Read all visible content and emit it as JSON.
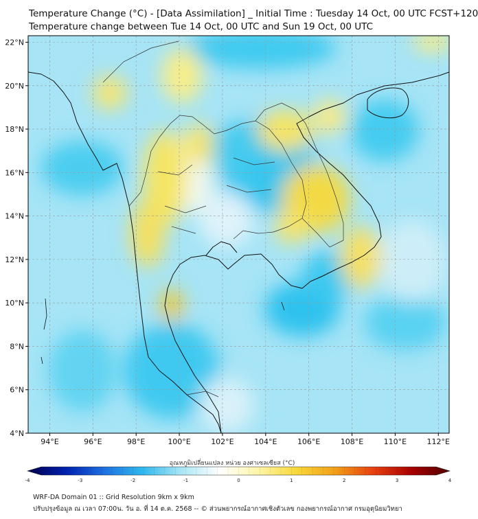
{
  "header": {
    "title_line1": "Temperature Change (°C) - [Data Assimilation] _ Initial Time : Tuesday 14 Oct, 00 UTC FCST+120",
    "title_line2": "Temperature change between Tue 14 Oct, 00 UTC and Sun 19 Oct, 00 UTC"
  },
  "map": {
    "lon_range": [
      93,
      112.5
    ],
    "lat_range": [
      4,
      22.3
    ],
    "lon_ticks": [
      {
        "value": 94,
        "label": "94°E"
      },
      {
        "value": 96,
        "label": "96°E"
      },
      {
        "value": 98,
        "label": "98°E"
      },
      {
        "value": 100,
        "label": "100°E"
      },
      {
        "value": 102,
        "label": "102°E"
      },
      {
        "value": 104,
        "label": "104°E"
      },
      {
        "value": 106,
        "label": "106°E"
      },
      {
        "value": 108,
        "label": "108°E"
      },
      {
        "value": 110,
        "label": "110°E"
      },
      {
        "value": 112,
        "label": "112°E"
      }
    ],
    "lat_ticks": [
      {
        "value": 4,
        "label": "4°N"
      },
      {
        "value": 6,
        "label": "6°N"
      },
      {
        "value": 8,
        "label": "8°N"
      },
      {
        "value": 10,
        "label": "10°N"
      },
      {
        "value": 12,
        "label": "12°N"
      },
      {
        "value": 14,
        "label": "14°N"
      },
      {
        "value": 16,
        "label": "16°N"
      },
      {
        "value": 18,
        "label": "18°N"
      },
      {
        "value": 20,
        "label": "20°N"
      },
      {
        "value": 22,
        "label": "22°N"
      }
    ],
    "grid": true,
    "colors": {
      "cool_strong": "#22c4ee",
      "cool": "#7fdcf5",
      "neutral": "#e6f5fa",
      "warm": "#f6ee7a",
      "warm_strong": "#f2cf2a"
    }
  },
  "colorbar": {
    "label": "อุณหภูมิเปลี่ยนแปลง หน่วย องศาเซลเซียส (°C)",
    "range": [
      -4,
      4
    ],
    "ticks": [
      {
        "value": -4,
        "label": "-4"
      },
      {
        "value": -3,
        "label": "-3"
      },
      {
        "value": -2,
        "label": "-2"
      },
      {
        "value": -1,
        "label": "-1"
      },
      {
        "value": 0,
        "label": "0"
      },
      {
        "value": 1,
        "label": "1"
      },
      {
        "value": 2,
        "label": "2"
      },
      {
        "value": 3,
        "label": "3"
      },
      {
        "value": 4,
        "label": "4"
      }
    ],
    "colors": [
      "#00004a",
      "#0020b0",
      "#1e70e0",
      "#30b8ee",
      "#a8e6f6",
      "#ffffff",
      "#fff6a8",
      "#f8d838",
      "#f2a018",
      "#e84010",
      "#a80000",
      "#500000"
    ]
  },
  "footer": {
    "line1": "WRF-DA Domain 01 :: Grid Resolution 9km x 9km",
    "line2": "ปรับปรุงข้อมูล ณ เวลา 07:00น. วัน อ. ที่ 14 ต.ค. 2568 -- © ส่วนพยากรณ์อากาศเชิงตัวเลข กองพยากรณ์อากาศ กรมอุตุนิยมวิทยา"
  }
}
